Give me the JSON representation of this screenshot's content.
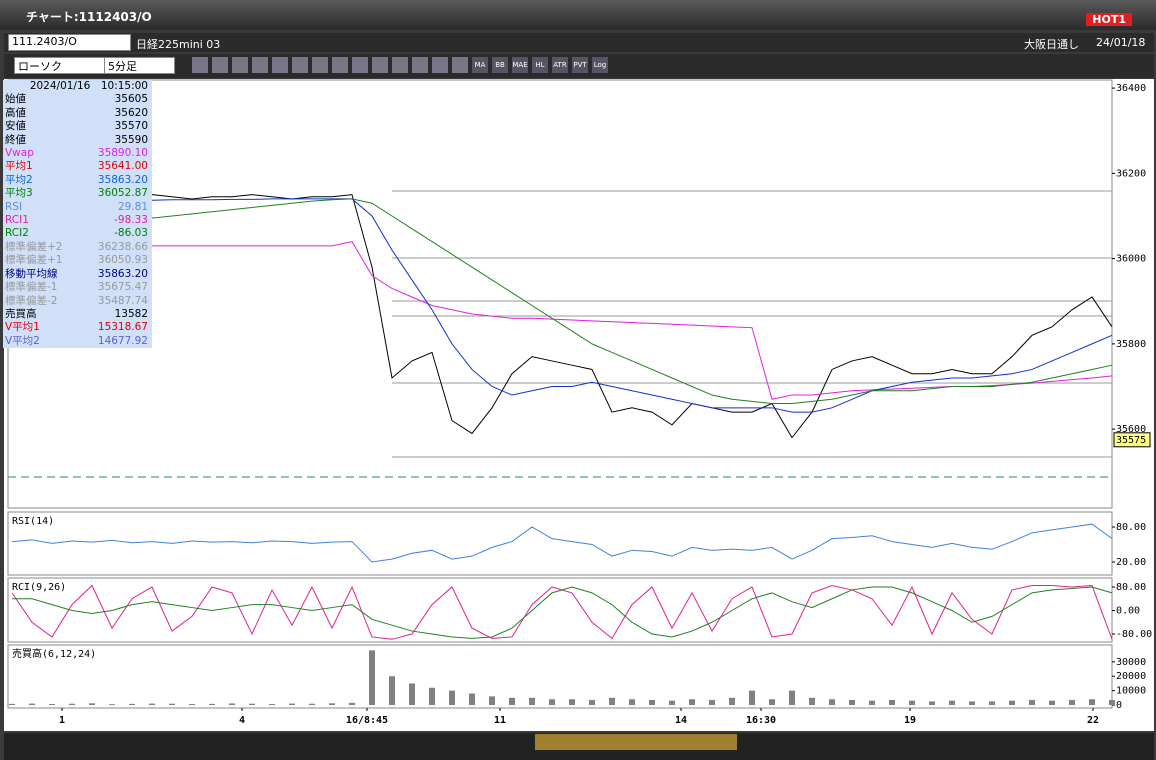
{
  "window": {
    "title": "チャート:1112403/O",
    "hot": "HOT1"
  },
  "toolbar": {
    "symbol": "111.2403/O",
    "name": "日経225mini 03",
    "session": "大阪日通し",
    "date": "24/01/18",
    "chart_kind": "ローソク",
    "interval": "5分足",
    "buttons": [
      "MA",
      "BB",
      "MAE",
      "HL",
      "ATR",
      "PVT",
      "Log"
    ]
  },
  "info": {
    "header": "2024/01/16　10:15:00",
    "rows": [
      [
        "始値",
        "35605",
        "#000"
      ],
      [
        "高値",
        "35620",
        "#000"
      ],
      [
        "安値",
        "35570",
        "#000"
      ],
      [
        "終値",
        "35590",
        "#000"
      ],
      [
        "Vwap",
        "35890.10",
        "#e020e0"
      ],
      [
        "平均1",
        "35641.00",
        "#e00000"
      ],
      [
        "平均2",
        "35863.20",
        "#1060e0"
      ],
      [
        "平均3",
        "36052.87",
        "#008000"
      ],
      [
        "RSI",
        "29.81",
        "#6090d0"
      ],
      [
        "RCI1",
        "-98.33",
        "#e020a0"
      ],
      [
        "RCI2",
        "-86.03",
        "#008000"
      ],
      [
        "標準偏差+2",
        "36238.66",
        "#999"
      ],
      [
        "標準偏差+1",
        "36050.93",
        "#999"
      ],
      [
        "移動平均線",
        "35863.20",
        "#000080"
      ],
      [
        "標準偏差-1",
        "35675.47",
        "#999"
      ],
      [
        "標準偏差-2",
        "35487.74",
        "#999"
      ],
      [
        "売買高",
        "13582",
        "#000"
      ],
      [
        "V平均1",
        "15318.67",
        "#e00000"
      ],
      [
        "V平均2",
        "14677.92",
        "#6060d0"
      ]
    ]
  },
  "chart_data": [
    {
      "type": "line",
      "last": 35575,
      "x": [
        0,
        1,
        2,
        3,
        4,
        5,
        6,
        7,
        8,
        9,
        10,
        11,
        12,
        13,
        14,
        15,
        16,
        17,
        18,
        19,
        20,
        21,
        22,
        23,
        24,
        25,
        26,
        27,
        28,
        29,
        30,
        31,
        32,
        33,
        34,
        35,
        36,
        37,
        38,
        39,
        40,
        41,
        42,
        43,
        44,
        45,
        46,
        47,
        48,
        49,
        50,
        51,
        52,
        53,
        54,
        55
      ],
      "xlim": [
        0,
        55
      ],
      "ylim": [
        35415,
        36419
      ],
      "yticks": [
        36400,
        36200,
        36000,
        35800,
        35600
      ],
      "series": [
        {
          "name": "終値",
          "color": "#000000",
          "values": [
            36140,
            36150,
            36150,
            36140,
            36150,
            36145,
            36150,
            36150,
            36145,
            36140,
            36145,
            36145,
            36150,
            36145,
            36140,
            36145,
            36145,
            36150,
            35980,
            35720,
            35760,
            35780,
            35620,
            35590,
            35650,
            35730,
            35770,
            35760,
            35750,
            35740,
            35640,
            35650,
            35640,
            35610,
            35660,
            35650,
            35640,
            35640,
            35660,
            35580,
            35640,
            35740,
            35760,
            35770,
            35750,
            35730,
            35730,
            35740,
            35730,
            35730,
            35770,
            35820,
            35840,
            35880,
            35910,
            35840
          ]
        },
        {
          "name": "Vwap",
          "color": "#e020e0",
          "values": [
            36030,
            36030,
            36030,
            36030,
            36030,
            36030,
            36030,
            36030,
            36030,
            36030,
            36030,
            36030,
            36030,
            36030,
            36030,
            36030,
            36030,
            36040,
            35960,
            35930,
            35910,
            35890,
            35880,
            35870,
            35865,
            35860,
            35860,
            35858,
            35856,
            35854,
            35852,
            35850,
            35848,
            35846,
            35844,
            35842,
            35840,
            35838,
            35670,
            35680,
            35680,
            35685,
            35690,
            35692,
            35694,
            35696,
            35698,
            35700,
            35700,
            35702,
            35705,
            35708,
            35712,
            35716,
            35720,
            35725
          ]
        },
        {
          "name": "平均2",
          "color": "#1030d0",
          "values": [
            36130,
            36132,
            36134,
            36135,
            36136,
            36136,
            36137,
            36137,
            36138,
            36138,
            36138,
            36139,
            36139,
            36140,
            36140,
            36140,
            36140,
            36140,
            36100,
            36020,
            35950,
            35880,
            35800,
            35740,
            35700,
            35680,
            35690,
            35700,
            35700,
            35710,
            35700,
            35690,
            35680,
            35670,
            35660,
            35650,
            35650,
            35650,
            35650,
            35640,
            35640,
            35650,
            35670,
            35690,
            35700,
            35710,
            35715,
            35720,
            35720,
            35725,
            35730,
            35740,
            35760,
            35780,
            35800,
            35820
          ]
        },
        {
          "name": "平均3",
          "color": "#208020",
          "values": [
            36060,
            36065,
            36070,
            36075,
            36080,
            36085,
            36090,
            36095,
            36100,
            36105,
            36110,
            36115,
            36120,
            36125,
            36130,
            36135,
            36138,
            36140,
            36130,
            36100,
            36070,
            36040,
            36010,
            35980,
            35950,
            35920,
            35890,
            35860,
            35830,
            35800,
            35780,
            35760,
            35740,
            35720,
            35700,
            35680,
            35670,
            35665,
            35660,
            35660,
            35665,
            35670,
            35680,
            35690,
            35690,
            35690,
            35695,
            35700,
            35700,
            35700,
            35705,
            35710,
            35720,
            35730,
            35740,
            35750
          ]
        }
      ]
    },
    {
      "type": "line",
      "title": "RSI(14)",
      "ylim": [
        -2.3,
        105.7
      ],
      "yticks": [
        {
          "value": 80,
          "label": "80.00"
        },
        {
          "value": 20,
          "label": "20.00"
        }
      ],
      "series": [
        {
          "name": "RSI",
          "color": "#4080e0",
          "values": [
            55,
            58,
            52,
            56,
            54,
            57,
            53,
            55,
            52,
            56,
            54,
            55,
            53,
            56,
            55,
            52,
            54,
            55,
            20,
            25,
            35,
            40,
            25,
            30,
            45,
            55,
            80,
            60,
            55,
            50,
            30,
            40,
            38,
            30,
            45,
            40,
            42,
            40,
            45,
            25,
            40,
            60,
            62,
            65,
            55,
            50,
            45,
            52,
            45,
            42,
            55,
            70,
            75,
            80,
            85,
            60
          ]
        }
      ]
    },
    {
      "type": "line",
      "title": "RCI(9,26)",
      "ylim": [
        -107.2,
        110.6
      ],
      "yticks": [
        {
          "value": 80,
          "label": "80.00"
        },
        {
          "value": 0,
          "label": "0.00"
        },
        {
          "value": -80,
          "label": "-80.00"
        }
      ],
      "series": [
        {
          "name": "RCI1",
          "color": "#e0208f",
          "values": [
            60,
            -40,
            -90,
            20,
            85,
            -60,
            40,
            80,
            -70,
            -20,
            80,
            60,
            -80,
            70,
            -50,
            80,
            -60,
            80,
            -90,
            -98,
            -80,
            20,
            80,
            -60,
            -95,
            -90,
            20,
            80,
            60,
            -40,
            -95,
            20,
            80,
            -60,
            60,
            -70,
            40,
            80,
            -90,
            -80,
            60,
            85,
            70,
            40,
            -50,
            80,
            -80,
            60,
            -30,
            -80,
            70,
            85,
            85,
            80,
            85,
            -98
          ]
        },
        {
          "name": "RCI2",
          "color": "#208020",
          "values": [
            40,
            40,
            20,
            0,
            -10,
            0,
            20,
            30,
            20,
            10,
            0,
            10,
            20,
            20,
            10,
            0,
            10,
            20,
            -30,
            -50,
            -70,
            -80,
            -90,
            -95,
            -90,
            -60,
            0,
            60,
            80,
            60,
            20,
            -40,
            -80,
            -90,
            -70,
            -40,
            0,
            40,
            60,
            30,
            10,
            40,
            70,
            80,
            80,
            60,
            30,
            0,
            -40,
            -20,
            20,
            60,
            70,
            75,
            80,
            60
          ]
        }
      ]
    },
    {
      "type": "bar",
      "title": "売買高(6,12,24)",
      "color": "#808080",
      "ylim": [
        -2070,
        41700
      ],
      "yticks": [
        30000,
        20000,
        10000,
        0
      ],
      "xticks": [
        {
          "value": 2.5,
          "label": "1"
        },
        {
          "value": 11.5,
          "label": "4"
        },
        {
          "value": 17.75,
          "label": "16/8:45"
        },
        {
          "value": 24.4,
          "label": "11"
        },
        {
          "value": 33.45,
          "label": "14"
        },
        {
          "value": 37.45,
          "label": "16:30"
        },
        {
          "value": 44.9,
          "label": "19"
        },
        {
          "value": 54.05,
          "label": "22"
        }
      ],
      "values": [
        800,
        1000,
        700,
        900,
        1200,
        600,
        800,
        1000,
        900,
        700,
        800,
        1100,
        900,
        700,
        1000,
        900,
        1200,
        1500,
        38000,
        20000,
        15000,
        12000,
        10000,
        8000,
        6000,
        5000,
        5000,
        4000,
        4000,
        3500,
        5000,
        4000,
        3500,
        3000,
        4000,
        3500,
        5000,
        10000,
        4000,
        10000,
        5000,
        4000,
        3500,
        3000,
        3500,
        3000,
        2500,
        3000,
        2500,
        2500,
        3000,
        3500,
        3000,
        3500,
        4000,
        3500
      ]
    }
  ]
}
